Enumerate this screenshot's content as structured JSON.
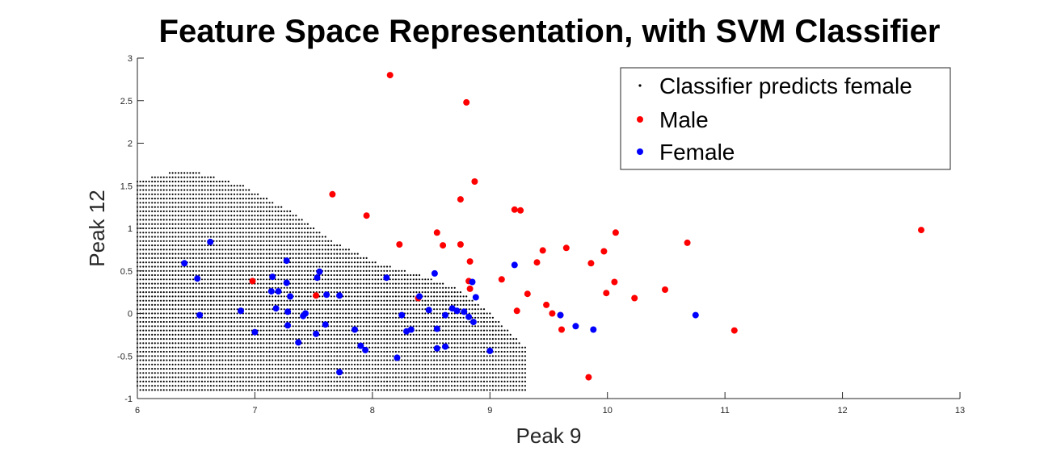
{
  "chart_data": {
    "type": "scatter",
    "title": "Feature Space Representation, with SVM Classifier",
    "xlabel": "Peak 9",
    "ylabel": "Peak 12",
    "xlim": [
      6,
      13
    ],
    "ylim": [
      -1,
      3
    ],
    "xticks": [
      "6",
      "7",
      "8",
      "9",
      "10",
      "11",
      "12",
      "13"
    ],
    "yticks": [
      "-1",
      "-0.5",
      "0",
      "0.5",
      "1",
      "1.5",
      "2",
      "2.5",
      "3"
    ],
    "grid": false,
    "legend_position": "top-right",
    "region": {
      "name": "Classifier predicts female",
      "color": "#000000",
      "x_step": 0.025,
      "y_step": 0.05,
      "x_range": [
        6.0,
        9.32
      ],
      "boundary_upper": [
        [
          6.0,
          1.56
        ],
        [
          6.3,
          1.66
        ],
        [
          6.5,
          1.66
        ],
        [
          6.9,
          1.5
        ],
        [
          7.3,
          1.2
        ],
        [
          7.6,
          0.9
        ],
        [
          8.0,
          0.62
        ],
        [
          8.4,
          0.45
        ],
        [
          8.7,
          0.3
        ],
        [
          9.0,
          0.0
        ],
        [
          9.32,
          -0.42
        ]
      ],
      "boundary_lower": [
        [
          6.0,
          -0.85
        ],
        [
          6.05,
          -0.95
        ],
        [
          9.32,
          -0.95
        ]
      ]
    },
    "series": [
      {
        "name": "Male",
        "color": "#ff0000",
        "points": [
          [
            8.15,
            2.8
          ],
          [
            8.8,
            2.48
          ],
          [
            8.87,
            1.55
          ],
          [
            7.66,
            1.4
          ],
          [
            8.75,
            1.34
          ],
          [
            7.95,
            1.15
          ],
          [
            9.21,
            1.22
          ],
          [
            9.26,
            1.21
          ],
          [
            8.55,
            0.95
          ],
          [
            10.07,
            0.95
          ],
          [
            12.67,
            0.98
          ],
          [
            8.23,
            0.81
          ],
          [
            8.6,
            0.8
          ],
          [
            8.75,
            0.81
          ],
          [
            10.68,
            0.83
          ],
          [
            9.45,
            0.74
          ],
          [
            9.65,
            0.77
          ],
          [
            9.97,
            0.73
          ],
          [
            8.83,
            0.61
          ],
          [
            9.4,
            0.6
          ],
          [
            9.86,
            0.59
          ],
          [
            6.98,
            0.38
          ],
          [
            9.1,
            0.4
          ],
          [
            8.82,
            0.38
          ],
          [
            10.06,
            0.37
          ],
          [
            8.83,
            0.29
          ],
          [
            9.32,
            0.23
          ],
          [
            9.99,
            0.24
          ],
          [
            10.49,
            0.28
          ],
          [
            7.52,
            0.21
          ],
          [
            10.23,
            0.18
          ],
          [
            8.39,
            0.18
          ],
          [
            9.48,
            0.1
          ],
          [
            9.23,
            0.03
          ],
          [
            9.53,
            0.0
          ],
          [
            9.6,
            -0.02
          ],
          [
            9.61,
            -0.19
          ],
          [
            11.08,
            -0.2
          ],
          [
            9.84,
            -0.75
          ]
        ]
      },
      {
        "name": "Female",
        "color": "#0000ff",
        "points": [
          [
            6.62,
            0.84
          ],
          [
            6.4,
            0.59
          ],
          [
            7.27,
            0.62
          ],
          [
            9.21,
            0.57
          ],
          [
            7.55,
            0.49
          ],
          [
            8.53,
            0.47
          ],
          [
            6.51,
            0.41
          ],
          [
            7.15,
            0.43
          ],
          [
            7.53,
            0.42
          ],
          [
            8.12,
            0.42
          ],
          [
            7.27,
            0.36
          ],
          [
            8.85,
            0.37
          ],
          [
            7.14,
            0.26
          ],
          [
            7.2,
            0.26
          ],
          [
            7.61,
            0.22
          ],
          [
            7.72,
            0.21
          ],
          [
            7.3,
            0.2
          ],
          [
            8.4,
            0.2
          ],
          [
            8.88,
            0.19
          ],
          [
            7.18,
            0.06
          ],
          [
            6.88,
            0.03
          ],
          [
            7.28,
            0.02
          ],
          [
            8.48,
            0.04
          ],
          [
            8.68,
            0.06
          ],
          [
            8.72,
            0.03
          ],
          [
            8.78,
            0.02
          ],
          [
            7.43,
            0.0
          ],
          [
            6.53,
            -0.02
          ],
          [
            7.41,
            -0.03
          ],
          [
            8.25,
            -0.02
          ],
          [
            8.62,
            -0.02
          ],
          [
            8.82,
            -0.04
          ],
          [
            9.6,
            -0.02
          ],
          [
            10.75,
            -0.02
          ],
          [
            7.28,
            -0.14
          ],
          [
            7.6,
            -0.13
          ],
          [
            8.33,
            -0.19
          ],
          [
            8.86,
            -0.1
          ],
          [
            7.0,
            -0.22
          ],
          [
            7.52,
            -0.24
          ],
          [
            8.29,
            -0.21
          ],
          [
            8.55,
            -0.18
          ],
          [
            9.73,
            -0.15
          ],
          [
            9.88,
            -0.19
          ],
          [
            7.85,
            -0.19
          ],
          [
            7.37,
            -0.34
          ],
          [
            7.9,
            -0.38
          ],
          [
            8.55,
            -0.41
          ],
          [
            7.94,
            -0.43
          ],
          [
            8.62,
            -0.39
          ],
          [
            8.21,
            -0.52
          ],
          [
            9.0,
            -0.44
          ],
          [
            7.72,
            -0.69
          ]
        ]
      }
    ]
  }
}
